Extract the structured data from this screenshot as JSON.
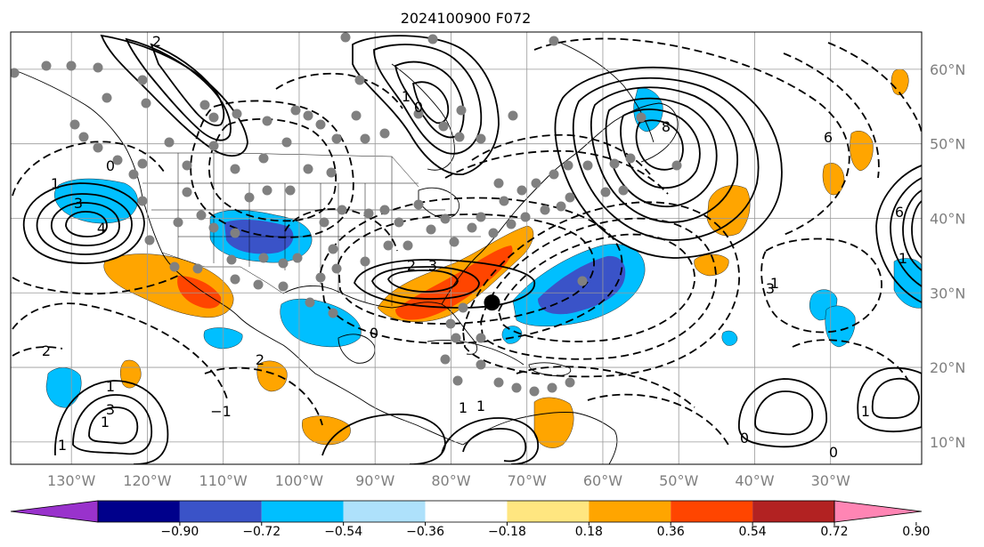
{
  "title": "2024100900 F072",
  "map": {
    "lon_range": [
      -138,
      -18
    ],
    "lat_range": [
      7,
      65
    ],
    "lon_ticks": [
      {
        "value": -130,
        "label": "130°W"
      },
      {
        "value": -120,
        "label": "120°W"
      },
      {
        "value": -110,
        "label": "110°W"
      },
      {
        "value": -100,
        "label": "100°W"
      },
      {
        "value": -90,
        "label": "90°W"
      },
      {
        "value": -80,
        "label": "80°W"
      },
      {
        "value": -70,
        "label": "70°W"
      },
      {
        "value": -60,
        "label": "60°W"
      },
      {
        "value": -50,
        "label": "50°W"
      },
      {
        "value": -40,
        "label": "40°W"
      },
      {
        "value": -30,
        "label": "30°W"
      }
    ],
    "lat_ticks": [
      {
        "value": 60,
        "label": "60°N"
      },
      {
        "value": 50,
        "label": "50°N"
      },
      {
        "value": 40,
        "label": "40°N"
      },
      {
        "value": 30,
        "label": "30°N"
      },
      {
        "value": 20,
        "label": "20°N"
      },
      {
        "value": 10,
        "label": "10°N"
      }
    ],
    "grid": true,
    "storm_marker": {
      "lon": -74.6,
      "lat": 28.7
    }
  },
  "colorbar": {
    "boundaries": [
      "−0.90",
      "−0.72",
      "−0.54",
      "−0.36",
      "−0.18",
      "0.18",
      "0.36",
      "0.54",
      "0.72",
      "0.90"
    ],
    "colors": [
      "#9932cc",
      "#00008b",
      "#3a53c8",
      "#00bfff",
      "#aee1fb",
      "#ffffff",
      "#ffe680",
      "#ffa500",
      "#ff4500",
      "#b22222",
      "#ff85b4"
    ],
    "extend": "both"
  },
  "shading_colors": {
    "neg_strong": "#3a53c8",
    "neg": "#00bfff",
    "pos": "#ffa500",
    "pos_strong": "#ff4500"
  },
  "contour_labels": [
    "2",
    "3",
    "4",
    "1",
    "0",
    "1",
    "2",
    "3",
    "6",
    "8",
    "6",
    "0",
    "1",
    "2",
    "3",
    "1",
    "0",
    "−1",
    "2",
    "1",
    "1",
    "1",
    "3",
    "0",
    "1",
    "0",
    "1",
    "1"
  ],
  "station_dot_color": "#808080"
}
